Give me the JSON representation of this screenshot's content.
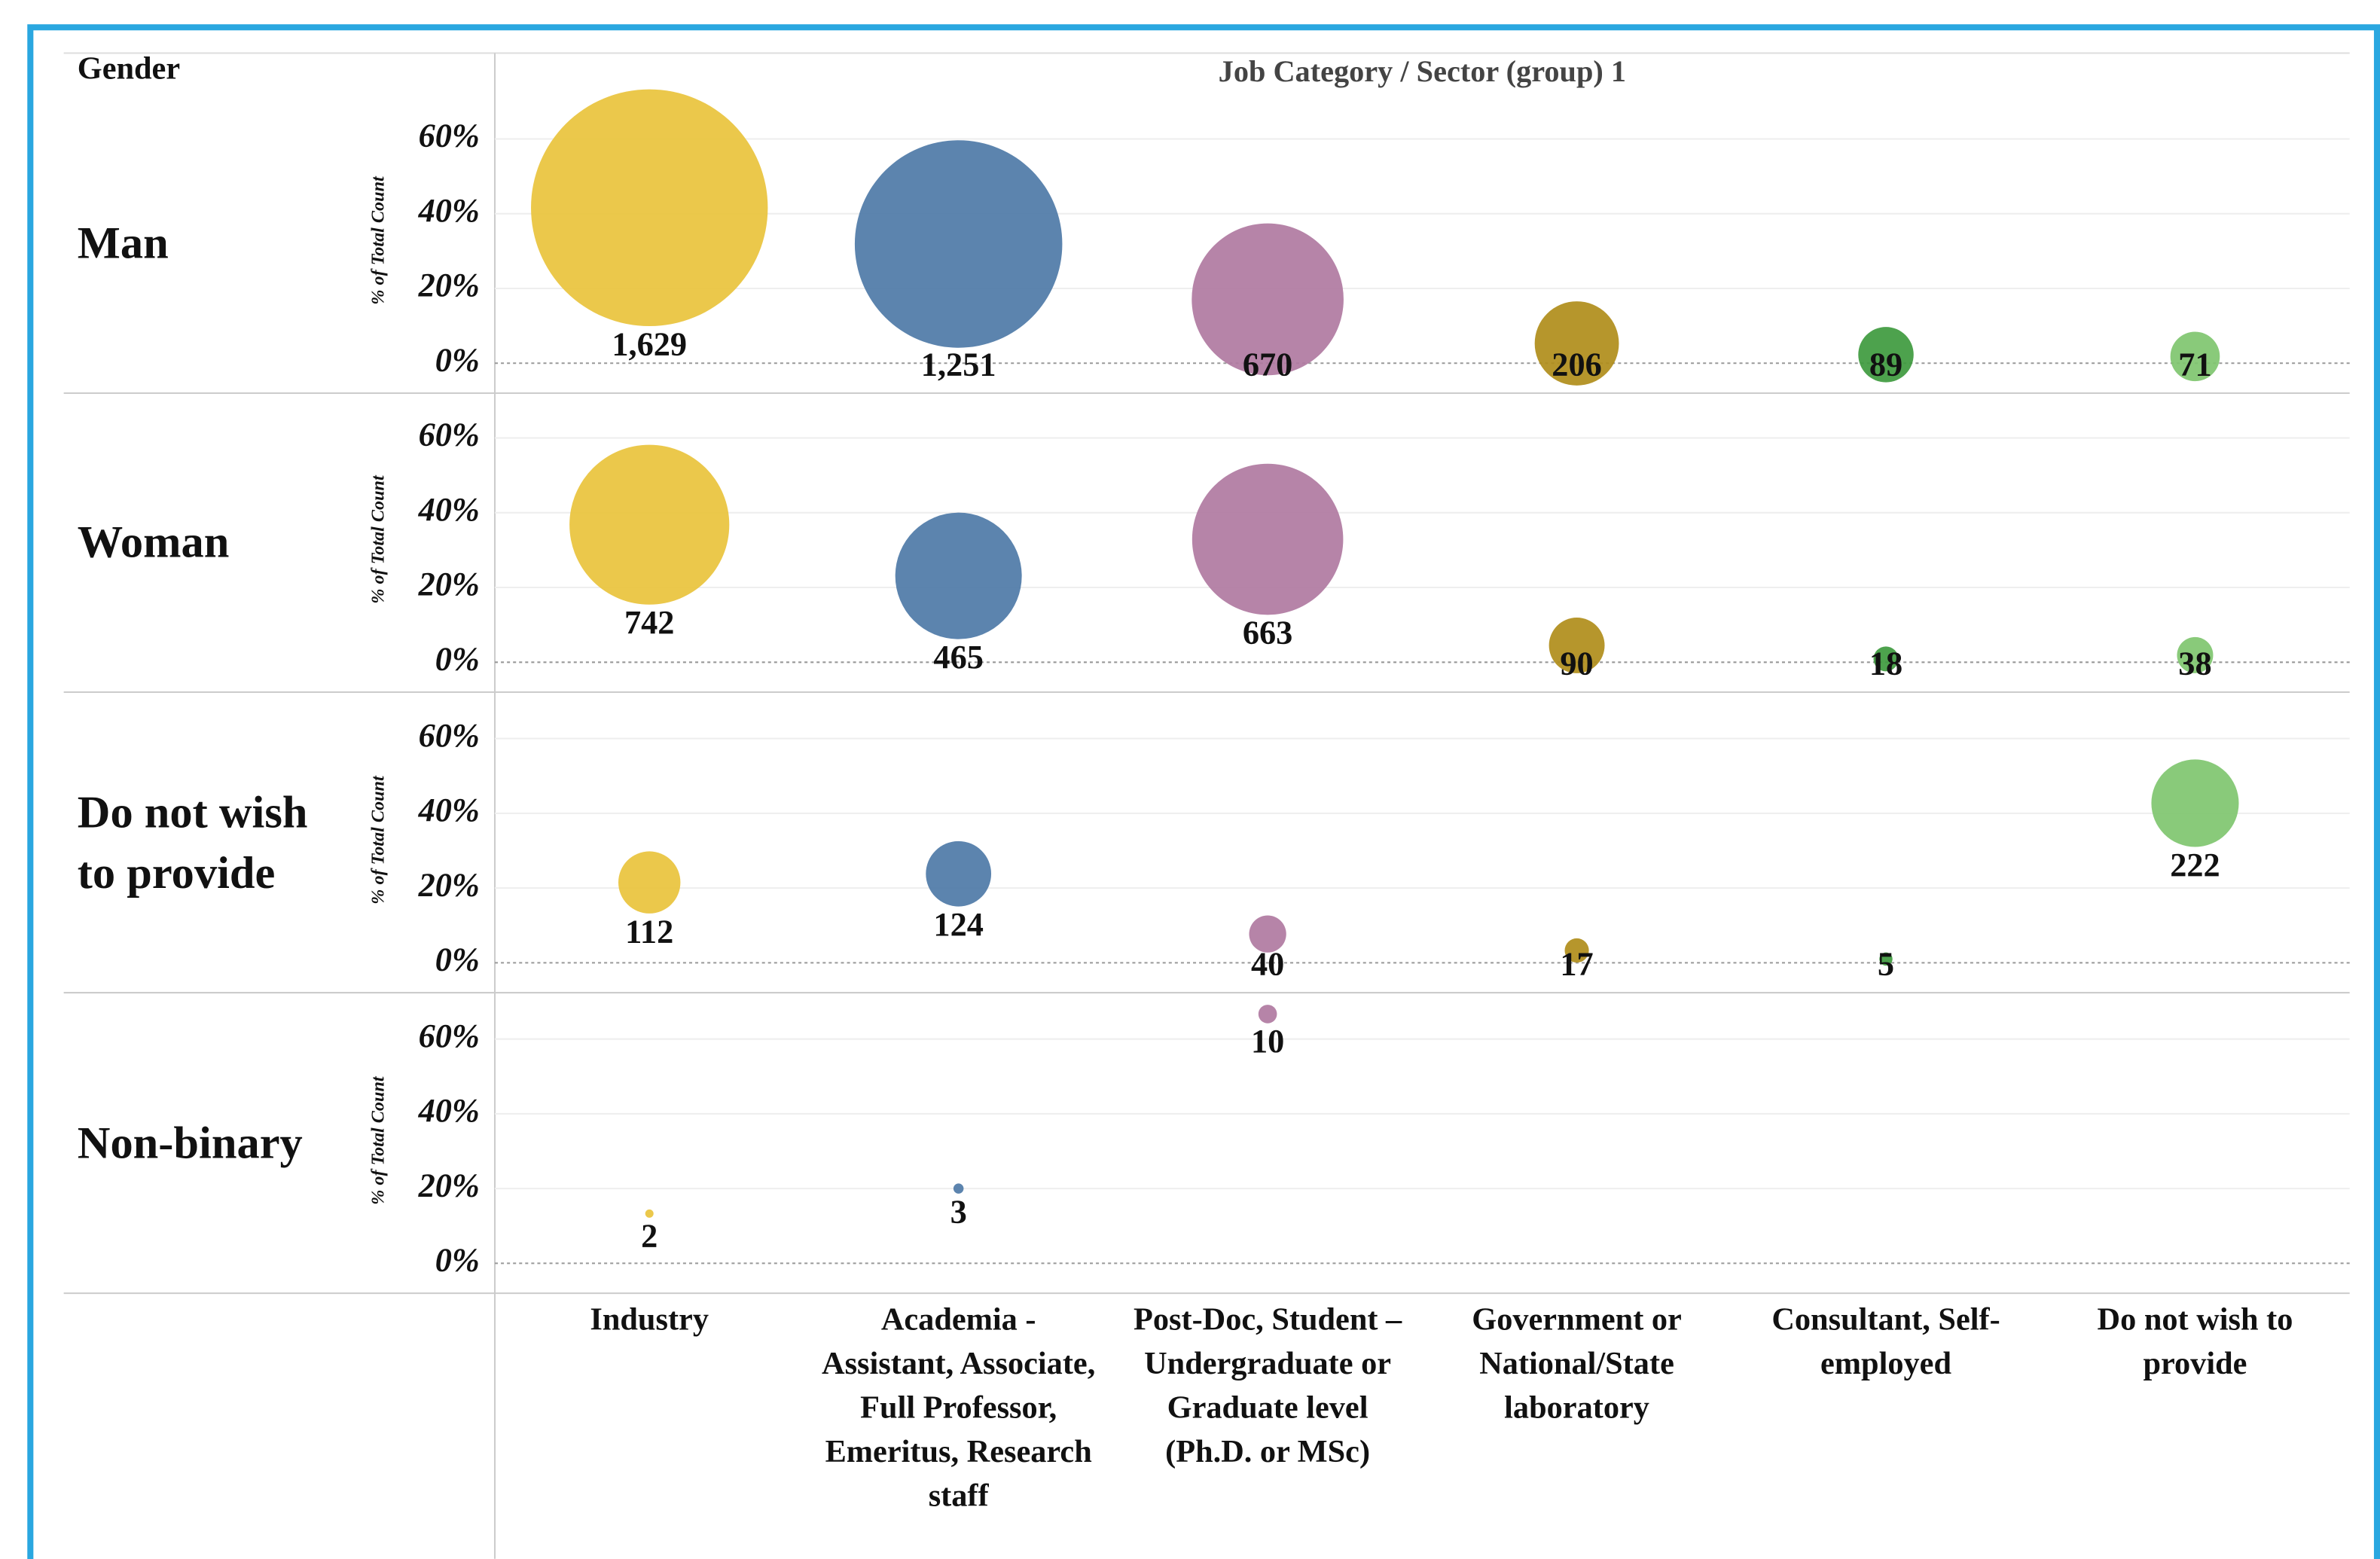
{
  "chart_data": {
    "type": "bubble",
    "row_header": "Gender",
    "title": "Job Category / Sector (group) 1",
    "y_axis_label": "% of Total Count",
    "categories": [
      "Industry",
      "Academia - Assistant, Associate, Full Professor, Emeritus, Research staff",
      "Post-Doc, Student –Undergraduate or Graduate level (Ph.D. or MSc)",
      "Government or National/State laboratory",
      "Consultant, Self-employed",
      "Do not wish to provide"
    ],
    "colors": [
      "#e9c33c",
      "#4e79a7",
      "#b07aa1",
      "#b08d1a",
      "#3e9a3e",
      "#7fc66f"
    ],
    "ylim": [
      -8,
      72
    ],
    "yticks": [
      {
        "value": 0,
        "label": "0%"
      },
      {
        "value": 20,
        "label": "20%"
      },
      {
        "value": 40,
        "label": "40%"
      },
      {
        "value": 60,
        "label": "60%"
      }
    ],
    "grid": true,
    "series": [
      {
        "name": "Man",
        "values": [
          41.6,
          31.9,
          17.1,
          5.3,
          2.3,
          1.8
        ],
        "sizes": [
          1629,
          1251,
          670,
          206,
          89,
          71
        ],
        "value_labels": [
          "1,629",
          "1,251",
          "670",
          "206",
          "89",
          "71"
        ]
      },
      {
        "name": "Woman",
        "values": [
          36.8,
          23.1,
          32.9,
          4.5,
          0.9,
          1.9
        ],
        "sizes": [
          742,
          465,
          663,
          90,
          18,
          38
        ],
        "value_labels": [
          "742",
          "465",
          "663",
          "90",
          "18",
          "38"
        ]
      },
      {
        "name": "Do not wish to provide",
        "values": [
          21.5,
          23.8,
          7.7,
          3.3,
          1.0,
          42.7
        ],
        "sizes": [
          112,
          124,
          40,
          17,
          5,
          222
        ],
        "value_labels": [
          "112",
          "124",
          "40",
          "17",
          "5",
          "222"
        ]
      },
      {
        "name": "Non-binary",
        "values": [
          13.3,
          20.0,
          66.7,
          null,
          null,
          null
        ],
        "sizes": [
          2,
          3,
          10,
          null,
          null,
          null
        ],
        "value_labels": [
          "2",
          "3",
          "10",
          null,
          null,
          null
        ]
      }
    ]
  }
}
